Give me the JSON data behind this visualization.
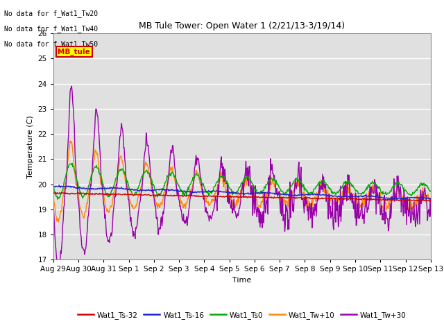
{
  "title": "MB Tule Tower: Open Water 1 (2/21/13-3/19/14)",
  "ylabel": "Temperature (C)",
  "xlabel": "Time",
  "ylim": [
    17.0,
    26.0
  ],
  "yticks": [
    17.0,
    18.0,
    19.0,
    20.0,
    21.0,
    22.0,
    23.0,
    24.0,
    25.0,
    26.0
  ],
  "bg_color": "#e0e0e0",
  "legend_labels": [
    "Wat1_Ts-32",
    "Wat1_Ts-16",
    "Wat1_Ts0",
    "Wat1_Tw+10",
    "Wat1_Tw+30"
  ],
  "legend_colors": [
    "#cc0000",
    "#2222cc",
    "#00aa00",
    "#ff8800",
    "#9900aa"
  ],
  "annotation_lines": [
    "No data for f_Wat1_Tw20",
    "No data for f_Wat1_Tw40",
    "No data for f_Wat1_Tw50"
  ],
  "mb_tule_label": "MB_tule",
  "x_tick_labels": [
    "Aug 29",
    "Aug 30",
    "Aug 31",
    "Sep 1",
    "Sep 2",
    "Sep 3",
    "Sep 4",
    "Sep 5",
    "Sep 6",
    "Sep 7",
    "Sep 8",
    "Sep 9",
    "Sep 10",
    "Sep 11",
    "Sep 12",
    "Sep 13"
  ],
  "line_colors": {
    "ts32": "#cc0000",
    "ts16": "#2222cc",
    "ts0": "#00aa00",
    "tw10": "#ff8800",
    "tw30": "#9900aa"
  },
  "figsize": [
    6.4,
    4.8
  ],
  "dpi": 100
}
